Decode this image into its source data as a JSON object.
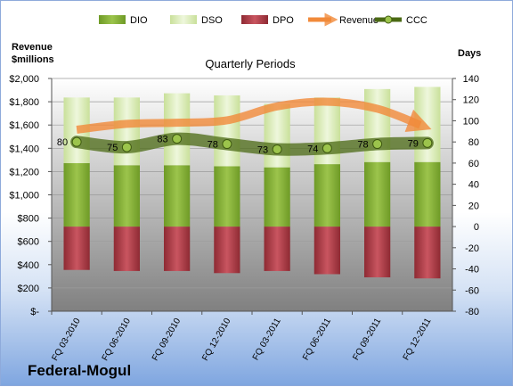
{
  "company": "Federal-Mogul",
  "chart_data": {
    "type": "bar",
    "title": "Quarterly Periods",
    "left_axis_label": [
      "Revenue",
      "$millions"
    ],
    "right_axis_label": "Days",
    "categories": [
      "FQ 03-2010",
      "FQ 06-2010",
      "FQ 09-2010",
      "FQ 12-2010",
      "FQ 03-2011",
      "FQ 06-2011",
      "FQ 09-2011",
      "FQ 12-2011"
    ],
    "left_ylim": [
      0,
      2000
    ],
    "left_ticks": [
      0,
      200,
      400,
      600,
      800,
      1000,
      1200,
      1400,
      1600,
      1800,
      2000
    ],
    "left_tick_labels": [
      "$-",
      "$200",
      "$400",
      "$600",
      "$800",
      "$1,000",
      "$1,200",
      "$1,400",
      "$1,600",
      "$1,800",
      "$2,000"
    ],
    "right_ylim": [
      -80,
      140
    ],
    "right_ticks": [
      -80,
      -60,
      -40,
      -20,
      0,
      20,
      40,
      60,
      80,
      100,
      120,
      140
    ],
    "legend": [
      "DIO",
      "DSO",
      "DPO",
      "Revenue",
      "CCC"
    ],
    "legend_position": "top",
    "series": [
      {
        "name": "DIO",
        "axis": "right",
        "kind": "stacked-bar",
        "values": [
          60,
          58,
          58,
          57,
          56,
          59,
          61,
          61
        ]
      },
      {
        "name": "DSO",
        "axis": "right",
        "kind": "stacked-bar",
        "values": [
          62,
          64,
          68,
          67,
          60,
          63,
          69,
          71
        ]
      },
      {
        "name": "DPO",
        "axis": "right",
        "kind": "negative-bar",
        "values": [
          -41,
          -42,
          -42,
          -44,
          -42,
          -45,
          -48,
          -49
        ]
      },
      {
        "name": "Revenue",
        "axis": "left",
        "kind": "line",
        "values": [
          1560,
          1610,
          1620,
          1640,
          1760,
          1800,
          1740,
          1600
        ]
      },
      {
        "name": "CCC",
        "axis": "right",
        "kind": "line",
        "values": [
          80,
          75,
          83,
          78,
          73,
          74,
          78,
          79
        ]
      }
    ],
    "ccc_labels": [
      "80",
      "75",
      "83",
      "78",
      "73",
      "74",
      "78",
      "79"
    ],
    "colors": {
      "DIO": "#86ae3a",
      "DSO": "#d8ebb5",
      "DPO": "#b3404a",
      "Revenue": "#f18a3a",
      "CCC": "#5d7a1f",
      "plot_bg_top": "#ffffff",
      "plot_bg_bottom": "#7f7f7f"
    }
  }
}
